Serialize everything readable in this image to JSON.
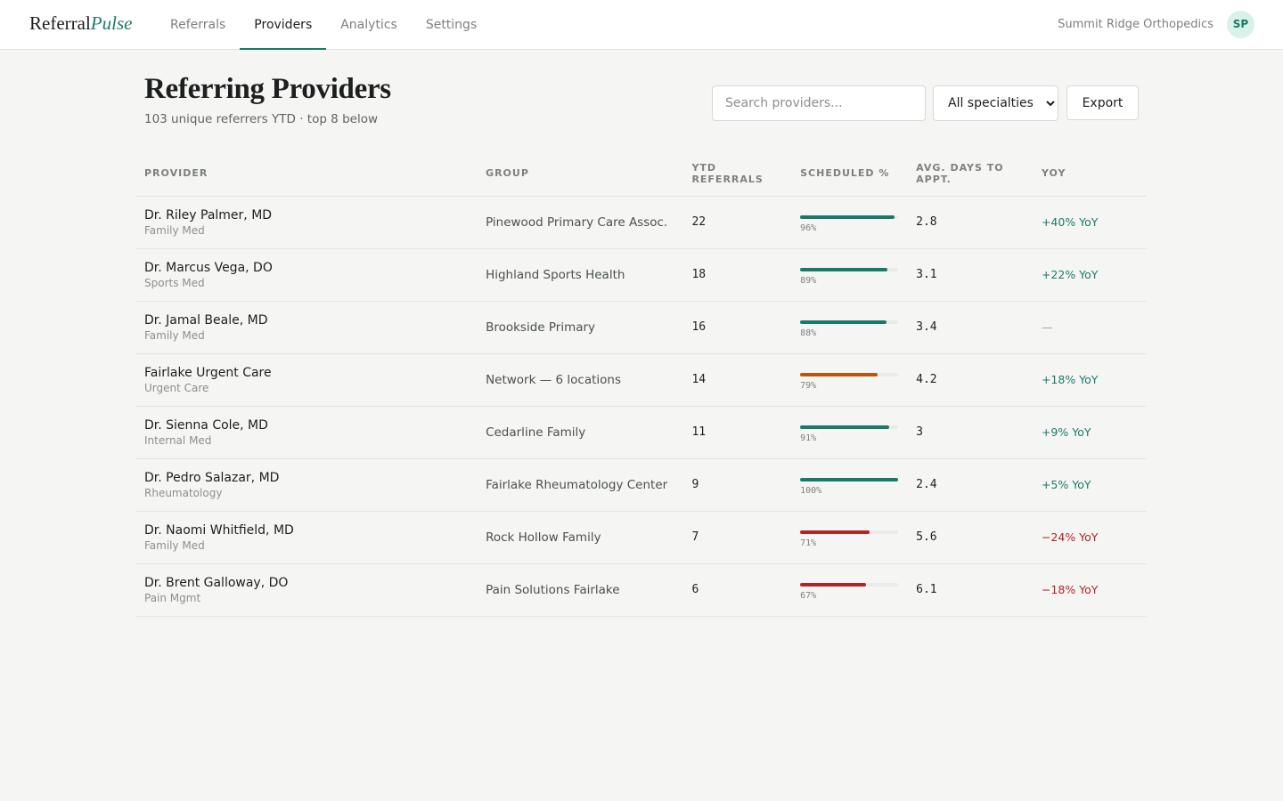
{
  "header": {
    "logo": {
      "main": "Referral",
      "accent": "Pulse"
    },
    "nav": [
      "Referrals",
      "Providers",
      "Analytics",
      "Settings"
    ],
    "org": "Summit Ridge Orthopedics",
    "avatar": "SP"
  },
  "page": {
    "title": "Referring Providers",
    "subtitle": "103 unique referrers YTD · top 8 below",
    "search_placeholder": "Search providers...",
    "filter": "All specialties",
    "export": "Export"
  },
  "table": {
    "columns": [
      "PROVIDER",
      "GROUP",
      "YTD REFERRALS",
      "SCHEDULED %",
      "AVG. DAYS TO APPT.",
      "YOY"
    ],
    "rows": [
      {
        "name": "Dr. Riley Palmer, MD",
        "specialty": "Family Med",
        "group": "Pinewood Primary Care Assoc.",
        "ytd": 22,
        "scheduled": {
          "value": 96,
          "label": "96%"
        },
        "bar_color": "#1a7a6a",
        "avg_days": 2.8,
        "yoy": "+40% YoY"
      },
      {
        "name": "Dr. Marcus Vega, DO",
        "specialty": "Sports Med",
        "group": "Highland Sports Health",
        "ytd": 18,
        "scheduled": {
          "value": 89,
          "label": "89%"
        },
        "bar_color": "#1a7a6a",
        "avg_days": 3.1,
        "yoy": "+22% YoY"
      },
      {
        "name": "Dr. Jamal Beale, MD",
        "specialty": "Family Med",
        "group": "Brookside Primary",
        "ytd": 16,
        "scheduled": {
          "value": 88,
          "label": "88%"
        },
        "bar_color": "#1a7a6a",
        "avg_days": 3.4,
        "yoy": "—"
      },
      {
        "name": "Fairlake Urgent Care",
        "specialty": "Urgent Care",
        "group": "Network — 6 locations",
        "ytd": 14,
        "scheduled": {
          "value": 79,
          "label": "79%"
        },
        "bar_color": "#b8560f",
        "avg_days": 4.2,
        "yoy": "+18% YoY"
      },
      {
        "name": "Dr. Sienna Cole, MD",
        "specialty": "Internal Med",
        "group": "Cedarline Family",
        "ytd": 11,
        "scheduled": {
          "value": 91,
          "label": "91%"
        },
        "bar_color": "#1a7a6a",
        "avg_days": 3,
        "yoy": "+9% YoY"
      },
      {
        "name": "Dr. Pedro Salazar, MD",
        "specialty": "Rheumatology",
        "group": "Fairlake Rheumatology Center",
        "ytd": 9,
        "scheduled": {
          "value": 100,
          "label": "100%"
        },
        "bar_color": "#1a7a6a",
        "avg_days": 2.4,
        "yoy": "+5% YoY"
      },
      {
        "name": "Dr. Naomi Whitfield, MD",
        "specialty": "Family Med",
        "group": "Rock Hollow Family",
        "ytd": 7,
        "scheduled": {
          "value": 71,
          "label": "71%"
        },
        "bar_color": "#b42323",
        "avg_days": 5.6,
        "yoy": "−24% YoY"
      },
      {
        "name": "Dr. Brent Galloway, DO",
        "specialty": "Pain Mgmt",
        "group": "Pain Solutions Fairlake",
        "ytd": 6,
        "scheduled": {
          "value": 67,
          "label": "67%"
        },
        "bar_color": "#b42323",
        "avg_days": 6.1,
        "yoy": "−18% YoY"
      }
    ]
  }
}
